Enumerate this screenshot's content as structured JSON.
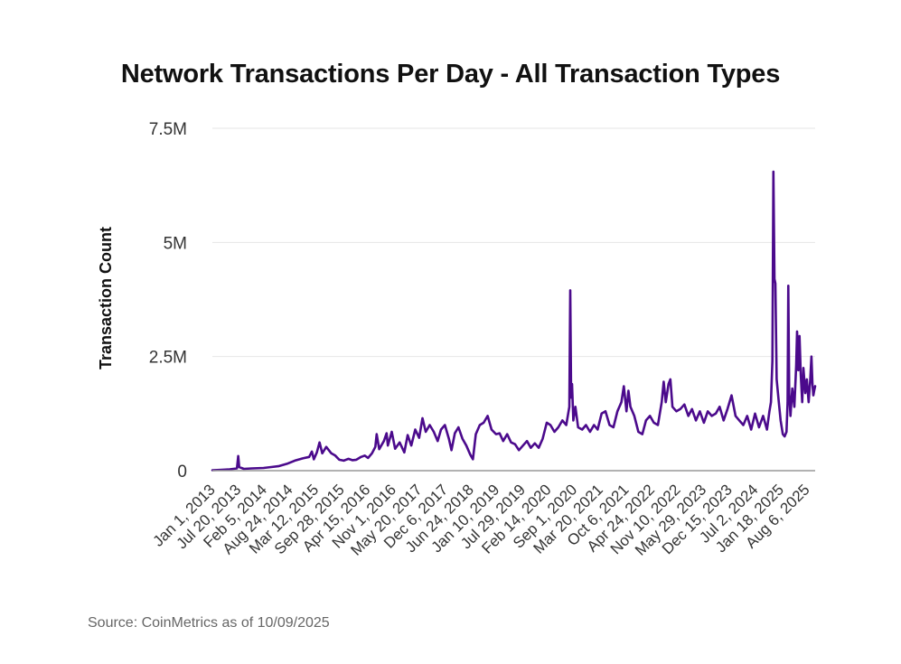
{
  "colors": {
    "line": "#4b0a8c",
    "grid": "#e6e6e6",
    "axis": "#999999",
    "text": "#333333"
  },
  "source": "Source: CoinMetrics as of 10/09/2025",
  "chart_data": {
    "type": "line",
    "title": "Network Transactions Per Day - All Transaction Types",
    "xlabel": "",
    "ylabel": "Transaction Count",
    "ylim": [
      0,
      7500000
    ],
    "xlim": [
      "2013-01-01",
      "2025-10-09"
    ],
    "grid": true,
    "legend": "none",
    "y_ticks": [
      {
        "value": 0,
        "label": "0"
      },
      {
        "value": 2500000,
        "label": "2.5M"
      },
      {
        "value": 5000000,
        "label": "5M"
      },
      {
        "value": 7500000,
        "label": "7.5M"
      }
    ],
    "x_ticks": [
      {
        "date": "2013-01-01",
        "label": "Jan 1, 2013"
      },
      {
        "date": "2013-07-20",
        "label": "Jul 20, 2013"
      },
      {
        "date": "2014-02-05",
        "label": "Feb 5, 2014"
      },
      {
        "date": "2014-08-24",
        "label": "Aug 24, 2014"
      },
      {
        "date": "2015-03-12",
        "label": "Mar 12, 2015"
      },
      {
        "date": "2015-09-28",
        "label": "Sep 28, 2015"
      },
      {
        "date": "2016-04-15",
        "label": "Apr 15, 2016"
      },
      {
        "date": "2016-11-01",
        "label": "Nov 1, 2016"
      },
      {
        "date": "2017-05-20",
        "label": "May 20, 2017"
      },
      {
        "date": "2017-12-06",
        "label": "Dec 6, 2017"
      },
      {
        "date": "2018-06-24",
        "label": "Jun 24, 2018"
      },
      {
        "date": "2019-01-10",
        "label": "Jan 10, 2019"
      },
      {
        "date": "2019-07-29",
        "label": "Jul 29, 2019"
      },
      {
        "date": "2020-02-14",
        "label": "Feb 14, 2020"
      },
      {
        "date": "2020-09-01",
        "label": "Sep 1, 2020"
      },
      {
        "date": "2021-03-20",
        "label": "Mar 20, 2021"
      },
      {
        "date": "2021-10-06",
        "label": "Oct 6, 2021"
      },
      {
        "date": "2022-04-24",
        "label": "Apr 24, 2022"
      },
      {
        "date": "2022-11-10",
        "label": "Nov 10, 2022"
      },
      {
        "date": "2023-05-29",
        "label": "May 29, 2023"
      },
      {
        "date": "2023-12-15",
        "label": "Dec 15, 2023"
      },
      {
        "date": "2024-07-02",
        "label": "Jul 2, 2024"
      },
      {
        "date": "2025-01-18",
        "label": "Jan 18, 2025"
      },
      {
        "date": "2025-08-06",
        "label": "Aug 6, 2025"
      }
    ],
    "series": [
      {
        "name": "Transactions per day",
        "points": [
          [
            "2013-01-01",
            10000
          ],
          [
            "2013-03-15",
            20000
          ],
          [
            "2013-05-15",
            30000
          ],
          [
            "2013-07-10",
            50000
          ],
          [
            "2013-07-20",
            320000
          ],
          [
            "2013-07-28",
            80000
          ],
          [
            "2013-09-01",
            40000
          ],
          [
            "2013-11-01",
            50000
          ],
          [
            "2014-02-01",
            60000
          ],
          [
            "2014-04-01",
            80000
          ],
          [
            "2014-06-01",
            100000
          ],
          [
            "2014-08-01",
            150000
          ],
          [
            "2014-10-01",
            220000
          ],
          [
            "2014-12-01",
            270000
          ],
          [
            "2015-01-20",
            300000
          ],
          [
            "2015-02-10",
            420000
          ],
          [
            "2015-02-25",
            250000
          ],
          [
            "2015-03-20",
            400000
          ],
          [
            "2015-04-10",
            620000
          ],
          [
            "2015-05-01",
            380000
          ],
          [
            "2015-06-01",
            520000
          ],
          [
            "2015-07-10",
            380000
          ],
          [
            "2015-08-10",
            330000
          ],
          [
            "2015-09-10",
            240000
          ],
          [
            "2015-10-15",
            220000
          ],
          [
            "2015-11-20",
            260000
          ],
          [
            "2015-12-20",
            230000
          ],
          [
            "2016-01-20",
            240000
          ],
          [
            "2016-02-25",
            300000
          ],
          [
            "2016-03-25",
            330000
          ],
          [
            "2016-04-20",
            280000
          ],
          [
            "2016-05-20",
            380000
          ],
          [
            "2016-06-15",
            520000
          ],
          [
            "2016-06-25",
            800000
          ],
          [
            "2016-07-15",
            470000
          ],
          [
            "2016-08-20",
            650000
          ],
          [
            "2016-09-10",
            820000
          ],
          [
            "2016-09-20",
            550000
          ],
          [
            "2016-10-20",
            850000
          ],
          [
            "2016-11-15",
            480000
          ],
          [
            "2016-12-20",
            620000
          ],
          [
            "2017-01-25",
            400000
          ],
          [
            "2017-02-20",
            780000
          ],
          [
            "2017-03-20",
            550000
          ],
          [
            "2017-04-20",
            900000
          ],
          [
            "2017-05-20",
            720000
          ],
          [
            "2017-06-15",
            1150000
          ],
          [
            "2017-07-10",
            850000
          ],
          [
            "2017-08-10",
            1000000
          ],
          [
            "2017-09-10",
            850000
          ],
          [
            "2017-10-10",
            650000
          ],
          [
            "2017-11-05",
            900000
          ],
          [
            "2017-12-05",
            1000000
          ],
          [
            "2018-01-05",
            700000
          ],
          [
            "2018-01-25",
            450000
          ],
          [
            "2018-02-20",
            820000
          ],
          [
            "2018-03-20",
            950000
          ],
          [
            "2018-04-20",
            700000
          ],
          [
            "2018-05-20",
            550000
          ],
          [
            "2018-06-20",
            350000
          ],
          [
            "2018-07-10",
            250000
          ],
          [
            "2018-08-01",
            800000
          ],
          [
            "2018-09-01",
            1000000
          ],
          [
            "2018-10-01",
            1050000
          ],
          [
            "2018-11-01",
            1200000
          ],
          [
            "2018-12-01",
            900000
          ],
          [
            "2019-01-05",
            800000
          ],
          [
            "2019-02-01",
            820000
          ],
          [
            "2019-03-01",
            650000
          ],
          [
            "2019-04-01",
            800000
          ],
          [
            "2019-05-01",
            620000
          ],
          [
            "2019-06-01",
            580000
          ],
          [
            "2019-07-01",
            450000
          ],
          [
            "2019-08-01",
            550000
          ],
          [
            "2019-09-01",
            650000
          ],
          [
            "2019-10-01",
            500000
          ],
          [
            "2019-11-01",
            600000
          ],
          [
            "2019-12-01",
            500000
          ],
          [
            "2020-01-01",
            700000
          ],
          [
            "2020-02-01",
            1050000
          ],
          [
            "2020-03-01",
            1000000
          ],
          [
            "2020-04-01",
            850000
          ],
          [
            "2020-05-01",
            950000
          ],
          [
            "2020-06-01",
            1100000
          ],
          [
            "2020-07-01",
            1000000
          ],
          [
            "2020-07-25",
            1400000
          ],
          [
            "2020-08-01",
            3950000
          ],
          [
            "2020-08-08",
            1600000
          ],
          [
            "2020-08-15",
            1900000
          ],
          [
            "2020-08-25",
            1100000
          ],
          [
            "2020-09-10",
            1400000
          ],
          [
            "2020-10-01",
            950000
          ],
          [
            "2020-11-01",
            900000
          ],
          [
            "2020-12-01",
            1000000
          ],
          [
            "2021-01-01",
            850000
          ],
          [
            "2021-02-01",
            1000000
          ],
          [
            "2021-03-01",
            900000
          ],
          [
            "2021-04-01",
            1250000
          ],
          [
            "2021-05-01",
            1300000
          ],
          [
            "2021-06-01",
            1000000
          ],
          [
            "2021-07-01",
            950000
          ],
          [
            "2021-08-01",
            1300000
          ],
          [
            "2021-09-01",
            1500000
          ],
          [
            "2021-09-20",
            1850000
          ],
          [
            "2021-10-10",
            1300000
          ],
          [
            "2021-10-25",
            1750000
          ],
          [
            "2021-11-10",
            1400000
          ],
          [
            "2021-12-10",
            1200000
          ],
          [
            "2022-01-10",
            850000
          ],
          [
            "2022-02-10",
            800000
          ],
          [
            "2022-03-10",
            1100000
          ],
          [
            "2022-04-10",
            1200000
          ],
          [
            "2022-05-10",
            1050000
          ],
          [
            "2022-06-10",
            1000000
          ],
          [
            "2022-07-10",
            1500000
          ],
          [
            "2022-07-25",
            1950000
          ],
          [
            "2022-08-10",
            1500000
          ],
          [
            "2022-09-01",
            1900000
          ],
          [
            "2022-09-15",
            2000000
          ],
          [
            "2022-10-01",
            1400000
          ],
          [
            "2022-11-01",
            1300000
          ],
          [
            "2022-12-01",
            1350000
          ],
          [
            "2023-01-01",
            1450000
          ],
          [
            "2023-02-01",
            1200000
          ],
          [
            "2023-03-01",
            1350000
          ],
          [
            "2023-04-01",
            1100000
          ],
          [
            "2023-05-01",
            1300000
          ],
          [
            "2023-06-01",
            1050000
          ],
          [
            "2023-07-01",
            1300000
          ],
          [
            "2023-08-01",
            1200000
          ],
          [
            "2023-09-01",
            1250000
          ],
          [
            "2023-10-01",
            1400000
          ],
          [
            "2023-11-01",
            1100000
          ],
          [
            "2023-12-01",
            1350000
          ],
          [
            "2024-01-01",
            1650000
          ],
          [
            "2024-02-01",
            1200000
          ],
          [
            "2024-03-01",
            1100000
          ],
          [
            "2024-04-01",
            1000000
          ],
          [
            "2024-05-01",
            1200000
          ],
          [
            "2024-06-01",
            900000
          ],
          [
            "2024-07-01",
            1250000
          ],
          [
            "2024-08-01",
            950000
          ],
          [
            "2024-09-01",
            1200000
          ],
          [
            "2024-10-01",
            900000
          ],
          [
            "2024-10-20",
            1300000
          ],
          [
            "2024-11-01",
            1500000
          ],
          [
            "2024-11-12",
            2400000
          ],
          [
            "2024-11-20",
            6550000
          ],
          [
            "2024-11-28",
            4200000
          ],
          [
            "2024-12-05",
            4100000
          ],
          [
            "2024-12-15",
            2000000
          ],
          [
            "2025-01-01",
            1500000
          ],
          [
            "2025-01-15",
            1100000
          ],
          [
            "2025-02-01",
            800000
          ],
          [
            "2025-02-15",
            750000
          ],
          [
            "2025-03-01",
            850000
          ],
          [
            "2025-03-10",
            1500000
          ],
          [
            "2025-03-15",
            4050000
          ],
          [
            "2025-03-22",
            1700000
          ],
          [
            "2025-04-01",
            1200000
          ],
          [
            "2025-04-15",
            1800000
          ],
          [
            "2025-05-01",
            1400000
          ],
          [
            "2025-05-15",
            2300000
          ],
          [
            "2025-05-22",
            3050000
          ],
          [
            "2025-06-01",
            2200000
          ],
          [
            "2025-06-10",
            2950000
          ],
          [
            "2025-06-20",
            2100000
          ],
          [
            "2025-07-01",
            1500000
          ],
          [
            "2025-07-10",
            2250000
          ],
          [
            "2025-07-25",
            1700000
          ],
          [
            "2025-08-06",
            2000000
          ],
          [
            "2025-08-20",
            1500000
          ],
          [
            "2025-09-01",
            2000000
          ],
          [
            "2025-09-10",
            2500000
          ],
          [
            "2025-09-18",
            1900000
          ],
          [
            "2025-09-25",
            1650000
          ],
          [
            "2025-10-01",
            1750000
          ],
          [
            "2025-10-09",
            1850000
          ]
        ]
      }
    ]
  }
}
